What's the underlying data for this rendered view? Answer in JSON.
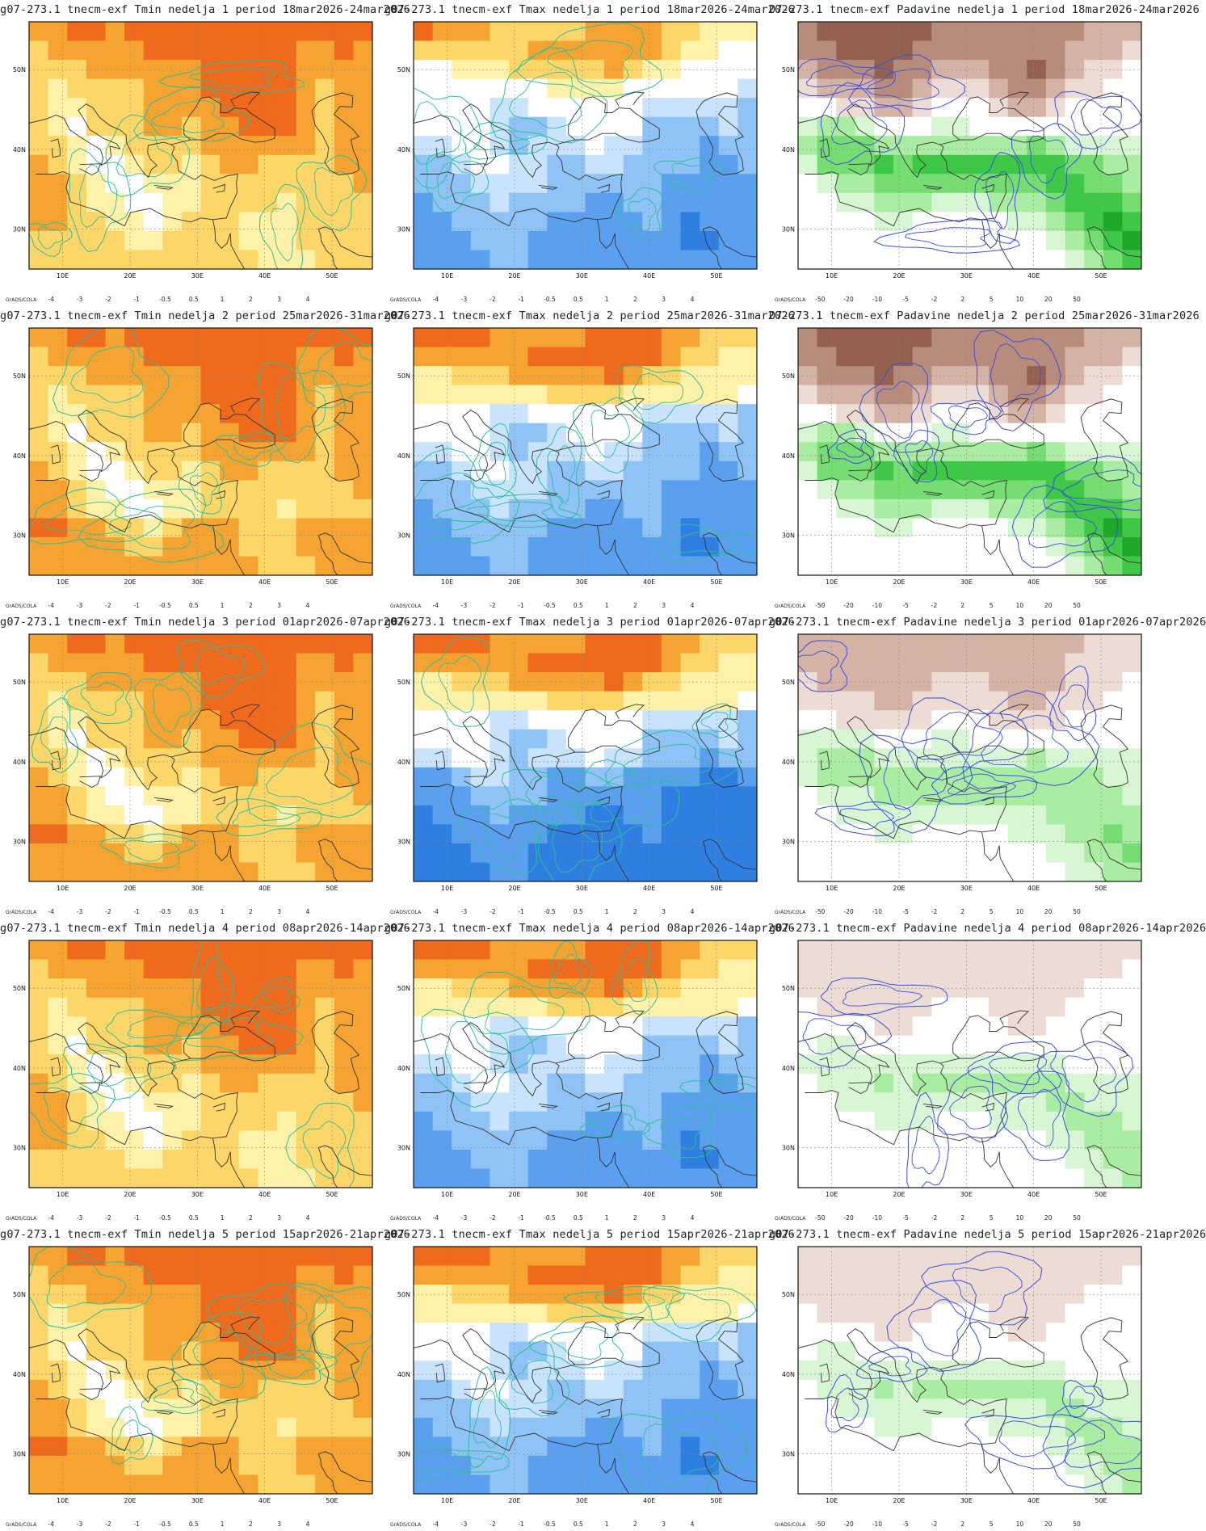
{
  "lat_labels": [
    "50N",
    "40N",
    "30N"
  ],
  "lon_labels": [
    "10E",
    "20E",
    "30E",
    "40E",
    "50E"
  ],
  "credit": "GrADS/COLA",
  "temp_legend": {
    "labels": [
      "-4",
      "-3",
      "-2",
      "-1",
      "-0.5",
      "0.5",
      "1",
      "2",
      "3",
      "4"
    ],
    "colors": [
      "#1c5fd0",
      "#2f7fe0",
      "#5aa0ee",
      "#8fc3f6",
      "#c8e3fb",
      "#ffffff",
      "#fff2a8",
      "#fdd66a",
      "#f6a431",
      "#ef6a1c",
      "#d83212",
      "#a50f0f"
    ]
  },
  "precip_legend": {
    "labels": [
      "-50",
      "-20",
      "-10",
      "-5",
      "-2",
      "2",
      "5",
      "10",
      "20",
      "50"
    ],
    "colors": [
      "#6b3b25",
      "#946150",
      "#b78c7c",
      "#d4b3a6",
      "#ecdcd3",
      "#ffffff",
      "#d8f6d4",
      "#a9eca2",
      "#75dd72",
      "#3fc748",
      "#1fa82a",
      "#0f8a1a"
    ]
  },
  "rows": [
    {
      "week": "1",
      "titles": [
        "g07-273.1 tnecm-exf Tmin nedelja 1 period 18mar2026-24mar2026",
        "g07-273.1 tnecm-exf Tmax nedelja 1 period 18mar2026-24mar2026",
        "07-273.1 tnecm-exf Padavine nedelja 1 period 18mar2026-24mar2026"
      ]
    },
    {
      "week": "2",
      "titles": [
        "g07-273.1 tnecm-exf Tmin nedelja 2 period 25mar2026-31mar2026",
        "g07-273.1 tnecm-exf Tmax nedelja 2 period 25mar2026-31mar2026",
        "07-273.1 tnecm-exf Padavine nedelja 2 period 25mar2026-31mar2026"
      ]
    },
    {
      "week": "3",
      "titles": [
        "g07-273.1 tnecm-exf Tmin nedelja 3 period 01apr2026-07apr2026",
        "g07-273.1 tnecm-exf Tmax nedelja 3 period 01apr2026-07apr2026",
        "g07-273.1 tnecm-exf Padavine nedelja 3 period 01apr2026-07apr2026"
      ]
    },
    {
      "week": "4",
      "titles": [
        "g07-273.1 tnecm-exf Tmin nedelja 4 period 08apr2026-14apr2026",
        "g07-273.1 tnecm-exf Tmax nedelja 4 period 08apr2026-14apr2026",
        "g07-273.1 tnecm-exf Padavine nedelja 4 period 08apr2026-14apr2026"
      ]
    },
    {
      "week": "5",
      "titles": [
        "g07-273.1 tnecm-exf Tmin nedelja 5 period 15apr2026-21apr2026",
        "g07-273.1 tnecm-exf Tmax nedelja 5 period 15apr2026-21apr2026",
        "g07-273.1 tnecm-exf Padavine nedelja 5 period 15apr2026-21apr2026"
      ]
    }
  ],
  "panel_kinds": [
    "tmin",
    "tmax",
    "precip"
  ],
  "fields": {
    "tmin": [
      [
        "3",
        "3",
        "4",
        "4",
        "3",
        "4",
        "4",
        "4",
        "4",
        "4",
        "4",
        "4",
        "4",
        "4",
        "4",
        "4",
        "4",
        "4"
      ],
      [
        "2",
        "3",
        "3",
        "3",
        "3",
        "3",
        "4",
        "4",
        "4",
        "4",
        "4",
        "4",
        "4",
        "4",
        "3",
        "3",
        "4",
        "3"
      ],
      [
        "2",
        "2",
        "2",
        "3",
        "3",
        "3",
        "3",
        "3",
        "3",
        "4",
        "4",
        "4",
        "4",
        "4",
        "3",
        "3",
        "3",
        "3"
      ],
      [
        "2",
        "1",
        "2",
        "2",
        "2",
        "2",
        "3",
        "3",
        "3",
        "4",
        "4",
        "4",
        "4",
        "4",
        "3",
        "2",
        "3",
        "3"
      ],
      [
        "2",
        "1",
        "1",
        "2",
        "2",
        "2",
        "3",
        "3",
        "3",
        "3",
        "4",
        "4",
        "4",
        "4",
        "3",
        "2",
        "3",
        "3"
      ],
      [
        "2",
        "1",
        "0",
        "2",
        "2",
        "2",
        "3",
        "3",
        "2",
        "3",
        "3",
        "4",
        "4",
        "4",
        "3",
        "2",
        "3",
        "3"
      ],
      [
        "2",
        "2",
        "1",
        "0",
        "1",
        "2",
        "2",
        "2",
        "2",
        "3",
        "3",
        "3",
        "3",
        "3",
        "3",
        "2",
        "3",
        "3"
      ],
      [
        "3",
        "2",
        "1",
        "0",
        "0",
        "1",
        "2",
        "2",
        "1",
        "2",
        "3",
        "3",
        "2",
        "2",
        "2",
        "2",
        "3",
        "3"
      ],
      [
        "3",
        "3",
        "2",
        "1",
        "0",
        "0",
        "1",
        "1",
        "1",
        "2",
        "2",
        "2",
        "2",
        "2",
        "2",
        "2",
        "2",
        "3"
      ],
      [
        "3",
        "3",
        "2",
        "1",
        "1",
        "0",
        "0",
        "1",
        "1",
        "2",
        "2",
        "2",
        "2",
        "1",
        "2",
        "2",
        "2",
        "2"
      ],
      [
        "3",
        "3",
        "2",
        "2",
        "1",
        "1",
        "0",
        "1",
        "2",
        "2",
        "2",
        "1",
        "1",
        "1",
        "2",
        "2",
        "2",
        "2"
      ],
      [
        "2",
        "2",
        "2",
        "2",
        "2",
        "1",
        "1",
        "2",
        "2",
        "2",
        "2",
        "1",
        "1",
        "1",
        "2",
        "2",
        "2",
        "2"
      ],
      [
        "2",
        "2",
        "2",
        "2",
        "2",
        "2",
        "2",
        "2",
        "2",
        "2",
        "2",
        "2",
        "1",
        "1",
        "1",
        "2",
        "2",
        "2"
      ]
    ],
    "tmax": [
      [
        "4",
        "3",
        "3",
        "3",
        "2",
        "2",
        "2",
        "2",
        "2",
        "3",
        "3",
        "3",
        "3",
        "2",
        "2",
        "1",
        "1",
        "1"
      ],
      [
        "2",
        "2",
        "2",
        "2",
        "2",
        "2",
        "3",
        "3",
        "3",
        "3",
        "3",
        "3",
        "3",
        "2",
        "1",
        "1",
        "0",
        "0"
      ],
      [
        "0",
        "0",
        "1",
        "1",
        "1",
        "2",
        "2",
        "2",
        "2",
        "2",
        "3",
        "2",
        "1",
        "1",
        "0",
        "0",
        "0",
        "0"
      ],
      [
        "0",
        "0",
        "0",
        "0",
        "0",
        "0",
        "0",
        "1",
        "1",
        "1",
        "1",
        "0",
        "0",
        "0",
        "0",
        "0",
        "0",
        "-1"
      ],
      [
        "0",
        "0",
        "0",
        "0",
        "-1",
        "-1",
        "0",
        "0",
        "0",
        "0",
        "0",
        "0",
        "-1",
        "-1",
        "-1",
        "-1",
        "-1",
        "-2"
      ],
      [
        "0",
        "0",
        "0",
        "0",
        "-1",
        "-2",
        "-2",
        "-1",
        "0",
        "0",
        "0",
        "0",
        "-2",
        "-2",
        "-2",
        "-2",
        "-1",
        "-2"
      ],
      [
        "-1",
        "-1",
        "0",
        "0",
        "-1",
        "-2",
        "-1",
        "-1",
        "-1",
        "0",
        "-1",
        "-1",
        "-2",
        "-2",
        "-2",
        "-3",
        "-2",
        "-2"
      ],
      [
        "-2",
        "-2",
        "-1",
        "0",
        "0",
        "-1",
        "-1",
        "-2",
        "-2",
        "-1",
        "-1",
        "-2",
        "-2",
        "-2",
        "-2",
        "-3",
        "-3",
        "-2"
      ],
      [
        "-2",
        "-2",
        "-2",
        "-1",
        "-1",
        "-1",
        "-1",
        "-2",
        "-2",
        "-2",
        "-2",
        "-2",
        "-2",
        "-3",
        "-3",
        "-3",
        "-3",
        "-3"
      ],
      [
        "-3",
        "-2",
        "-2",
        "-2",
        "-1",
        "-2",
        "-2",
        "-2",
        "-2",
        "-3",
        "-3",
        "-2",
        "-2",
        "-3",
        "-3",
        "-3",
        "-3",
        "-3"
      ],
      [
        "-3",
        "-3",
        "-2",
        "-2",
        "-2",
        "-2",
        "-2",
        "-3",
        "-3",
        "-3",
        "-3",
        "-3",
        "-2",
        "-3",
        "-4",
        "-3",
        "-3",
        "-3"
      ],
      [
        "-3",
        "-3",
        "-3",
        "-2",
        "-2",
        "-2",
        "-3",
        "-3",
        "-3",
        "-3",
        "-3",
        "-3",
        "-3",
        "-3",
        "-4",
        "-4",
        "-3",
        "-3"
      ],
      [
        "-3",
        "-3",
        "-3",
        "-3",
        "-2",
        "-2",
        "-3",
        "-3",
        "-3",
        "-3",
        "-3",
        "-3",
        "-3",
        "-3",
        "-3",
        "-3",
        "-3",
        "-3"
      ]
    ],
    "precip": [
      [
        "-3",
        "-4",
        "-4",
        "-4",
        "-4",
        "-4",
        "-4",
        "-3",
        "-3",
        "-3",
        "-3",
        "-3",
        "-3",
        "-3",
        "-3",
        "-2",
        "-2",
        "-2"
      ],
      [
        "-3",
        "-3",
        "-4",
        "-4",
        "-4",
        "-4",
        "-3",
        "-3",
        "-3",
        "-3",
        "-3",
        "-3",
        "-3",
        "-3",
        "-2",
        "-2",
        "-2",
        "-1"
      ],
      [
        "-2",
        "-3",
        "-3",
        "-3",
        "-4",
        "-3",
        "-3",
        "-2",
        "-2",
        "-2",
        "-3",
        "-3",
        "-4",
        "-3",
        "-2",
        "-1",
        "-1",
        "0"
      ],
      [
        "-1",
        "-2",
        "-2",
        "-2",
        "-3",
        "-3",
        "-2",
        "-1",
        "-1",
        "-1",
        "-2",
        "-3",
        "-3",
        "-2",
        "-1",
        "-1",
        "0",
        "0"
      ],
      [
        "0",
        "0",
        "-1",
        "-1",
        "-2",
        "-2",
        "-1",
        "0",
        "0",
        "0",
        "-1",
        "-2",
        "-2",
        "-1",
        "0",
        "0",
        "0",
        "0"
      ],
      [
        "1",
        "2",
        "2",
        "1",
        "0",
        "0",
        "0",
        "1",
        "1",
        "0",
        "0",
        "0",
        "0",
        "0",
        "0",
        "0",
        "0",
        "0"
      ],
      [
        "2",
        "3",
        "3",
        "3",
        "2",
        "2",
        "2",
        "2",
        "2",
        "2",
        "2",
        "2",
        "3",
        "2",
        "1",
        "1",
        "1",
        "1"
      ],
      [
        "1",
        "3",
        "3",
        "3",
        "4",
        "3",
        "4",
        "4",
        "4",
        "4",
        "4",
        "4",
        "4",
        "4",
        "3",
        "3",
        "2",
        "2"
      ],
      [
        "0",
        "1",
        "2",
        "2",
        "3",
        "3",
        "3",
        "3",
        "3",
        "3",
        "3",
        "3",
        "3",
        "4",
        "4",
        "3",
        "3",
        "2"
      ],
      [
        "0",
        "0",
        "1",
        "1",
        "2",
        "2",
        "2",
        "1",
        "1",
        "1",
        "2",
        "2",
        "2",
        "3",
        "4",
        "4",
        "4",
        "3"
      ],
      [
        "0",
        "0",
        "0",
        "0",
        "1",
        "1",
        "0",
        "0",
        "0",
        "0",
        "0",
        "1",
        "1",
        "2",
        "3",
        "4",
        "5",
        "4"
      ],
      [
        "0",
        "0",
        "0",
        "0",
        "0",
        "0",
        "0",
        "0",
        "0",
        "0",
        "0",
        "0",
        "0",
        "1",
        "2",
        "3",
        "4",
        "5"
      ],
      [
        "0",
        "0",
        "0",
        "0",
        "0",
        "0",
        "0",
        "0",
        "0",
        "0",
        "0",
        "0",
        "0",
        "0",
        "1",
        "2",
        "3",
        "4"
      ]
    ]
  }
}
